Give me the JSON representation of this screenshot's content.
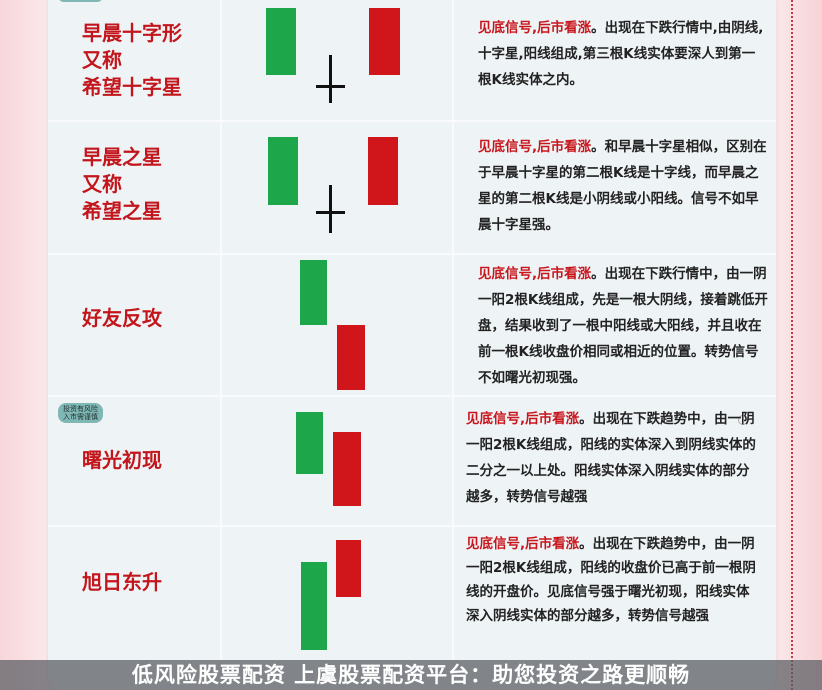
{
  "badge": {
    "line1": "投资有风险",
    "line2": "入市需谨慎"
  },
  "rows": [
    {
      "title": "早晨十字形\n又称\n希望十字星",
      "highlight": "见底信号,后市看涨",
      "text": "。出现在下跌行情中,由阴线,十字星,阳线组成,第三根K线实体要深人到第一根K线实体之内。"
    },
    {
      "title": "早晨之星\n又称\n希望之星",
      "highlight": "见底信号,后市看涨",
      "text": "。和早晨十字星相似，区别在于早晨十字星的第二根K线是十字线，而早晨之星的第二根K线是小阴线或小阳线。信号不如早晨十字星强。"
    },
    {
      "title": "好友反攻",
      "highlight": "见底信号,后市看涨",
      "text": "。出现在下跌行情中，由一阴一阳2根K线组成，先是一根大阴线，接着跳低开盘，结果收到了一根中阳线或大阳线，并且收在前一根K线收盘价相同或相近的位置。转势信号不如曙光初现强。"
    },
    {
      "title": "曙光初现",
      "highlight": "见底信号,后市看涨",
      "text": "。出现在下跌趋势中，由一阴一阳2根K线组成，阳线的实体深入到阴线实体的二分之一以上处。阳线实体深入阴线实体的部分越多，转势信号越强"
    },
    {
      "title": "旭日东升",
      "highlight": "见底信号,后市看涨",
      "text": "。出现在下跌趋势中，由一阴一阳2根K线组成，阳线的收盘价已高于前一根阴线的开盘价。见底信号强于曙光初现，阳线实体深入阴线实体的部分越多，转势信号越强"
    }
  ],
  "banner": "低风险股票配资 上虞股票配资平台：助您投资之路更顺畅",
  "colors": {
    "bullish": "#d0161b",
    "bearish": "#1ea64b",
    "title": "#c3161c"
  }
}
